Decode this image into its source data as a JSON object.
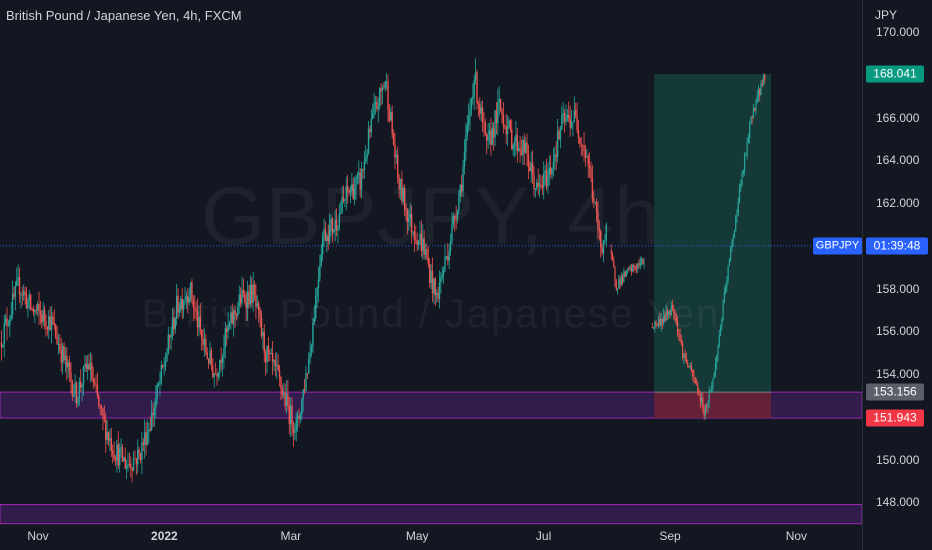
{
  "header": {
    "title": "British Pound / Japanese Yen, 4h, FXCM"
  },
  "watermark": {
    "line1": "GBPJPY, 4h",
    "line2": "British Pound / Japanese Yen"
  },
  "axis": {
    "currency": "JPY"
  },
  "chart_data": {
    "type": "candlestick",
    "symbol": "GBPJPY",
    "interval": "4h",
    "source": "FXCM",
    "ylim": [
      146.8,
      171.5
    ],
    "yticks": [
      {
        "value": 148,
        "label": "148.000"
      },
      {
        "value": 150,
        "label": "150.000"
      },
      {
        "value": 154,
        "label": "154.000"
      },
      {
        "value": 156,
        "label": "156.000"
      },
      {
        "value": 158,
        "label": "158.000"
      },
      {
        "value": 162,
        "label": "162.000"
      },
      {
        "value": 164,
        "label": "164.000"
      },
      {
        "value": 166,
        "label": "166.000"
      },
      {
        "value": 170,
        "label": "170.000"
      }
    ],
    "xticks": [
      {
        "label": "Nov",
        "month": 0,
        "bold": false
      },
      {
        "label": "2022",
        "month": 2,
        "bold": true
      },
      {
        "label": "Mar",
        "month": 4,
        "bold": false
      },
      {
        "label": "May",
        "month": 6,
        "bold": false
      },
      {
        "label": "Jul",
        "month": 8,
        "bold": false
      },
      {
        "label": "Sep",
        "month": 10,
        "bold": false
      },
      {
        "label": "Nov",
        "month": 12,
        "bold": false
      }
    ],
    "price_path": [
      [
        -0.6,
        155.5
      ],
      [
        -0.3,
        158.2
      ],
      [
        -0.1,
        157.0
      ],
      [
        0.2,
        156.5
      ],
      [
        0.4,
        154.8
      ],
      [
        0.6,
        153.0
      ],
      [
        0.8,
        154.5
      ],
      [
        1.0,
        152.0
      ],
      [
        1.2,
        150.5
      ],
      [
        1.4,
        149.8
      ],
      [
        1.6,
        150.2
      ],
      [
        1.8,
        152.0
      ],
      [
        2.0,
        154.5
      ],
      [
        2.2,
        157.2
      ],
      [
        2.4,
        158.0
      ],
      [
        2.6,
        155.5
      ],
      [
        2.8,
        154.0
      ],
      [
        3.0,
        156.0
      ],
      [
        3.2,
        157.5
      ],
      [
        3.4,
        157.8
      ],
      [
        3.6,
        155.0
      ],
      [
        3.8,
        153.8
      ],
      [
        4.0,
        152.0
      ],
      [
        4.1,
        151.5
      ],
      [
        4.3,
        155.0
      ],
      [
        4.5,
        160.5
      ],
      [
        4.7,
        161.0
      ],
      [
        4.9,
        162.5
      ],
      [
        5.1,
        163.0
      ],
      [
        5.3,
        166.0
      ],
      [
        5.5,
        167.8
      ],
      [
        5.7,
        163.0
      ],
      [
        5.9,
        161.0
      ],
      [
        6.1,
        160.0
      ],
      [
        6.3,
        157.5
      ],
      [
        6.5,
        160.0
      ],
      [
        6.7,
        163.0
      ],
      [
        6.9,
        168.0
      ],
      [
        7.1,
        164.5
      ],
      [
        7.3,
        166.5
      ],
      [
        7.5,
        165.0
      ],
      [
        7.7,
        164.5
      ],
      [
        7.9,
        162.5
      ],
      [
        8.1,
        163.5
      ],
      [
        8.3,
        165.8
      ],
      [
        8.5,
        166.0
      ],
      [
        8.7,
        164.0
      ],
      [
        8.9,
        160.0
      ],
      [
        9.0,
        160.5
      ]
    ],
    "projection_path": [
      [
        9.05,
        159.8
      ],
      [
        9.15,
        158.2
      ],
      [
        9.35,
        158.8
      ],
      [
        9.6,
        159.3
      ]
    ],
    "projection_path_2": [
      [
        9.7,
        156.2
      ],
      [
        9.9,
        156.6
      ],
      [
        10.05,
        157.2
      ],
      [
        10.2,
        155.0
      ],
      [
        10.4,
        153.6
      ],
      [
        10.55,
        152.2
      ],
      [
        10.7,
        154.0
      ],
      [
        10.9,
        158.5
      ],
      [
        11.1,
        162.5
      ],
      [
        11.3,
        166.2
      ],
      [
        11.5,
        168.0
      ]
    ],
    "current_price": 160.0,
    "zones": [
      {
        "top": 153.156,
        "bottom": 151.943
      },
      {
        "top": 147.9,
        "bottom": 147.0
      }
    ],
    "long_position": {
      "entry": 153.156,
      "target": 168.041,
      "stop": 151.943,
      "start_month": 9.75,
      "end_month": 11.6
    },
    "price_tags": {
      "target": "168.041",
      "entry": "153.156",
      "stop": "151.943"
    },
    "countdown": "01:39:48",
    "symbol_badge": "GBPJPY",
    "colors": {
      "background": "#131722",
      "up": "#26a69a",
      "down": "#ef5350",
      "wick": "#b2b5be",
      "zone_fill": "#3c1f5a",
      "zone_border": "#9c27b0",
      "profit": "#163d3a",
      "loss": "#6b2236",
      "target_tag": "#089981",
      "entry_tag": "#5d606b",
      "stop_tag": "#f23645",
      "current_line": "#2962ff"
    }
  }
}
